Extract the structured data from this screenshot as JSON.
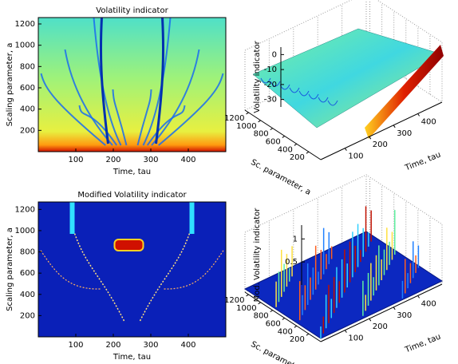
{
  "chart_data": [
    {
      "type": "heatmap",
      "title": "Volatility indicator",
      "x_label": "Time, tau",
      "y_label": "Scaling parameter, a",
      "xlim": [
        0,
        500
      ],
      "ylim": [
        0,
        1260
      ],
      "xticks": [
        100,
        200,
        300,
        400
      ],
      "yticks": [
        200,
        400,
        600,
        800,
        1000,
        1200
      ],
      "colormap": "jet"
    },
    {
      "type": "surface3d",
      "x_label": "Time, tau",
      "y_label": "Sc. parameter, a",
      "z_label": "Volatility indicator",
      "xlim": [
        0,
        500
      ],
      "ylim": [
        0,
        1260
      ],
      "zlim": [
        -35,
        5
      ],
      "xticks": [
        100,
        200,
        300,
        400
      ],
      "yticks": [
        200,
        400,
        600,
        800,
        1000,
        1200
      ],
      "zticks": [
        -30,
        -20,
        -10,
        0
      ],
      "grid": true,
      "colormap": "jet"
    },
    {
      "type": "heatmap",
      "title": "Modified Volatility indicator",
      "x_label": "Time, tau",
      "y_label": "Scaling parameter, a",
      "xlim": [
        0,
        500
      ],
      "ylim": [
        0,
        1270
      ],
      "xticks": [
        100,
        200,
        300,
        400
      ],
      "yticks": [
        200,
        400,
        600,
        800,
        1000,
        1200
      ],
      "colormap": "jet"
    },
    {
      "type": "surface3d",
      "x_label": "Time, tau",
      "y_label": "Sc. parameter, a",
      "z_label": "Mod. Volatility indicator",
      "xlim": [
        0,
        500
      ],
      "ylim": [
        0,
        1260
      ],
      "zlim": [
        0,
        1.3
      ],
      "xticks": [
        100,
        200,
        300,
        400
      ],
      "yticks": [
        200,
        400,
        600,
        800,
        1000,
        1200
      ],
      "zticks": [
        0.5,
        1
      ],
      "grid": true,
      "colormap": "jet"
    }
  ]
}
